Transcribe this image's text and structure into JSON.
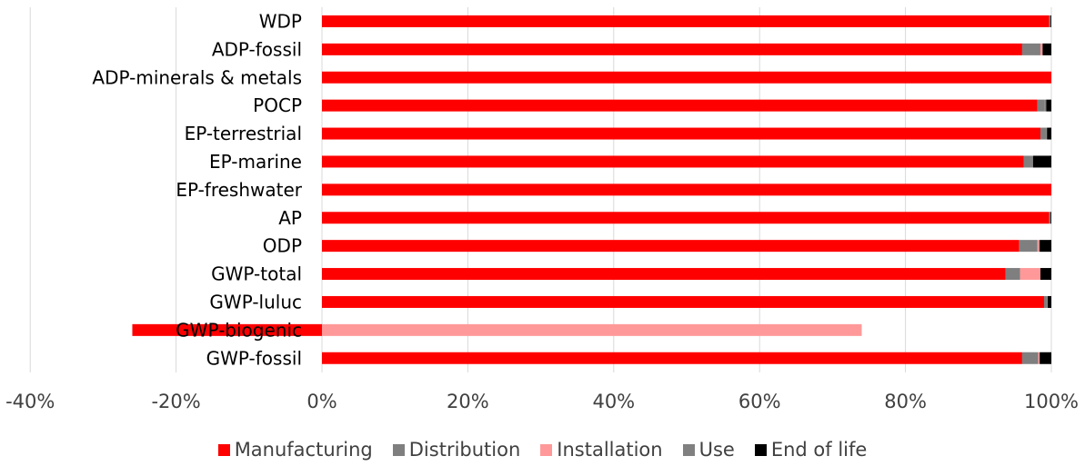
{
  "chart_data": {
    "type": "bar",
    "orientation": "horizontal",
    "stacked": true,
    "title": "",
    "xlabel": "",
    "ylabel": "",
    "xlim": [
      -0.4,
      1.0
    ],
    "x_ticks": [
      "-40%",
      "-20%",
      "0%",
      "20%",
      "40%",
      "60%",
      "80%",
      "100%"
    ],
    "x_tick_values": [
      -0.4,
      -0.2,
      0.0,
      0.2,
      0.4,
      0.6,
      0.8,
      1.0
    ],
    "grid": "vertical",
    "legend_position": "bottom",
    "categories": [
      "WDP",
      "ADP-fossil",
      "ADP-minerals & metals",
      "POCP",
      "EP-terrestrial",
      "EP-marine",
      "EP-freshwater",
      "AP",
      "ODP",
      "GWP-total",
      "GWP-luluc",
      "GWP-biogenic",
      "GWP-fossil"
    ],
    "series": [
      {
        "name": "Manufacturing",
        "color": "#ff0000",
        "values": [
          0.997,
          0.96,
          1.0,
          0.981,
          0.985,
          0.962,
          1.0,
          0.997,
          0.956,
          0.937,
          0.99,
          -0.26,
          0.96
        ]
      },
      {
        "name": "Distribution",
        "color": "#7f7f7f",
        "values": [
          0.002,
          0.025,
          0.0,
          0.01,
          0.008,
          0.01,
          0.0,
          0.002,
          0.025,
          0.02,
          0.004,
          0.0,
          0.022
        ]
      },
      {
        "name": "Installation",
        "color": "#ff9999",
        "values": [
          0.0,
          0.003,
          0.0,
          0.0,
          0.0,
          0.0,
          0.0,
          0.0,
          0.002,
          0.028,
          0.0,
          0.74,
          0.002
        ]
      },
      {
        "name": "Use",
        "color": "#808080",
        "values": [
          0.0,
          0.0,
          0.0,
          0.002,
          0.001,
          0.003,
          0.0,
          0.0,
          0.001,
          0.0,
          0.001,
          0.0,
          0.0
        ]
      },
      {
        "name": "End of life",
        "color": "#000000",
        "values": [
          0.001,
          0.012,
          0.0,
          0.007,
          0.006,
          0.025,
          0.0,
          0.001,
          0.016,
          0.015,
          0.005,
          0.0,
          0.016
        ]
      }
    ]
  }
}
